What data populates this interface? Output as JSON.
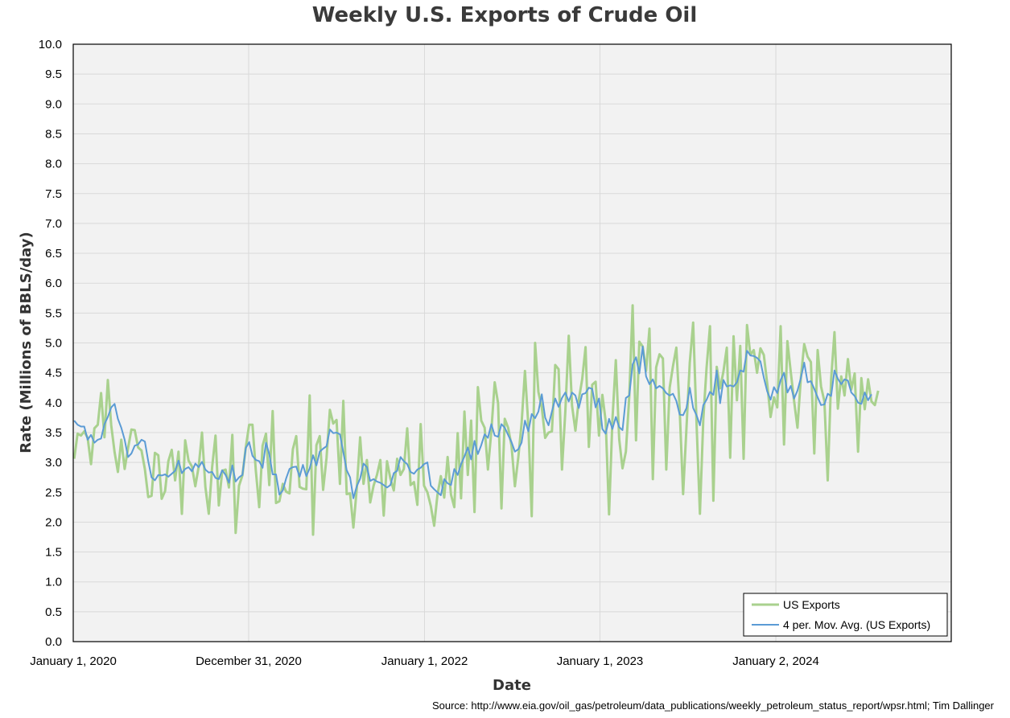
{
  "chart_data": {
    "type": "line",
    "title": "Weekly U.S. Exports of Crude Oil",
    "xlabel": "Date",
    "ylabel": "Rate (Millions of BBLS/day)",
    "source": "Source: http://www.eia.gov/oil_gas/petroleum/data_publications/weekly_petroleum_status_report/wpsr.html; Tim Dallinger",
    "ylim": [
      0,
      10
    ],
    "yticks": [
      "0.0",
      "0.5",
      "1.0",
      "1.5",
      "2.0",
      "2.5",
      "3.0",
      "3.5",
      "4.0",
      "4.5",
      "5.0",
      "5.5",
      "6.0",
      "6.5",
      "7.0",
      "7.5",
      "8.0",
      "8.5",
      "9.0",
      "9.5",
      "10.0"
    ],
    "xlim": [
      "2020-01-01",
      "2025-01-01"
    ],
    "xticks": [
      {
        "label": "January 1, 2020",
        "date": "2020-01-01"
      },
      {
        "label": "December 31, 2020",
        "date": "2020-12-31"
      },
      {
        "label": "January 1, 2022",
        "date": "2022-01-01"
      },
      {
        "label": "January 1, 2023",
        "date": "2023-01-01"
      },
      {
        "label": "January 2, 2024",
        "date": "2024-01-02"
      }
    ],
    "grid": true,
    "legend_position": "bottom-right",
    "colors": {
      "plot_bg": "#f2f2f2",
      "grid": "#d9d9d9",
      "series": "#a9d18e",
      "moving_avg": "#5b9bd5"
    },
    "x_start": "2020-01-03",
    "x_step_days": 7,
    "series": [
      {
        "name": "US Exports",
        "values": [
          3.06,
          3.48,
          3.45,
          3.52,
          3.41,
          2.97,
          3.57,
          3.63,
          4.16,
          3.42,
          4.38,
          3.62,
          3.17,
          2.84,
          3.38,
          2.89,
          3.24,
          3.55,
          3.54,
          3.25,
          3.2,
          2.89,
          2.42,
          2.44,
          3.16,
          3.12,
          2.39,
          2.52,
          3.02,
          3.21,
          2.7,
          3.18,
          2.14,
          3.37,
          3.03,
          2.93,
          2.6,
          2.93,
          3.5,
          2.59,
          2.14,
          2.92,
          3.45,
          2.28,
          2.86,
          2.88,
          2.58,
          3.46,
          1.82,
          2.61,
          2.78,
          3.25,
          3.63,
          3.63,
          2.86,
          2.25,
          3.28,
          3.48,
          2.62,
          3.86,
          2.32,
          2.35,
          2.64,
          2.51,
          2.48,
          3.22,
          3.44,
          2.59,
          2.56,
          2.55,
          4.12,
          1.79,
          3.29,
          3.44,
          2.54,
          3.07,
          3.88,
          3.65,
          3.71,
          2.64,
          4.03,
          2.47,
          2.48,
          1.91,
          2.56,
          3.42,
          2.64,
          3.04,
          2.33,
          2.61,
          2.79,
          3.04,
          2.11,
          3.02,
          2.73,
          2.53,
          3.06,
          2.79,
          2.89,
          3.57,
          2.62,
          2.67,
          2.29,
          3.64,
          2.61,
          2.5,
          2.27,
          1.94,
          2.46,
          2.77,
          2.41,
          3.09,
          2.46,
          2.25,
          3.49,
          2.4,
          3.85,
          2.79,
          3.7,
          2.17,
          4.26,
          3.7,
          3.58,
          2.88,
          3.52,
          4.34,
          3.99,
          2.23,
          3.73,
          3.58,
          3.28,
          2.6,
          3.08,
          3.65,
          4.53,
          3.62,
          2.1,
          5.0,
          4.18,
          3.92,
          3.41,
          3.5,
          3.52,
          4.63,
          4.56,
          2.88,
          3.86,
          5.12,
          3.95,
          3.53,
          4.05,
          4.39,
          4.93,
          3.26,
          4.3,
          4.35,
          3.45,
          4.13,
          3.69,
          2.13,
          3.72,
          4.71,
          3.39,
          2.9,
          3.18,
          4.1,
          5.63,
          3.37,
          5.02,
          4.94,
          4.53,
          5.24,
          2.72,
          4.59,
          4.81,
          4.74,
          2.88,
          4.25,
          4.61,
          4.92,
          3.87,
          2.47,
          3.58,
          4.67,
          5.34,
          3.66,
          2.14,
          3.72,
          4.59,
          5.28,
          2.36,
          4.6,
          4.24,
          4.52,
          4.92,
          3.08,
          5.11,
          4.04,
          4.95,
          3.06,
          5.3,
          4.8,
          4.88,
          4.5,
          4.91,
          4.8,
          4.32,
          3.76,
          4.09,
          3.92,
          5.28,
          3.3,
          5.03,
          4.51,
          4.03,
          3.58,
          4.41,
          4.98,
          4.77,
          4.68,
          3.15,
          4.88,
          4.27,
          4.02,
          2.7,
          4.38,
          5.18,
          3.9,
          4.44,
          4.12,
          4.73,
          4.22,
          4.49,
          3.18,
          4.41,
          3.89,
          4.39,
          4.02,
          3.96,
          4.2
        ]
      },
      {
        "name": "4 per. Mov. Avg. (US Exports)",
        "values": [
          3.7,
          3.63,
          3.6,
          3.6,
          3.38,
          3.46,
          3.33,
          3.38,
          3.4,
          3.64,
          3.76,
          3.92,
          3.98,
          3.73,
          3.58,
          3.38,
          3.09,
          3.15,
          3.28,
          3.3,
          3.38,
          3.35,
          3.02,
          2.75,
          2.7,
          2.79,
          2.78,
          2.8,
          2.76,
          2.81,
          2.86,
          3.03,
          2.82,
          2.89,
          2.92,
          2.85,
          2.98,
          2.92,
          3.01,
          2.88,
          2.83,
          2.84,
          2.74,
          2.72,
          2.87,
          2.79,
          2.66,
          2.95,
          2.68,
          2.75,
          2.79,
          3.24,
          3.34,
          3.11,
          3.04,
          3.02,
          2.91,
          3.33,
          3.14,
          2.8,
          2.8,
          2.46,
          2.53,
          2.73,
          2.89,
          2.92,
          2.93,
          2.76,
          2.96,
          2.77,
          2.9,
          3.12,
          2.95,
          3.18,
          3.23,
          3.27,
          3.55,
          3.49,
          3.5,
          3.47,
          3.17,
          2.87,
          2.75,
          2.4,
          2.6,
          2.73,
          2.98,
          2.92,
          2.69,
          2.72,
          2.68,
          2.66,
          2.62,
          2.58,
          2.62,
          2.82,
          2.86,
          3.09,
          3.02,
          2.97,
          2.84,
          2.81,
          2.88,
          2.91,
          2.97,
          3.0,
          2.61,
          2.55,
          2.5,
          2.45,
          2.72,
          2.65,
          2.62,
          2.89,
          2.79,
          2.97,
          3.1,
          3.25,
          3.05,
          3.36,
          3.14,
          3.29,
          3.47,
          3.41,
          3.64,
          3.45,
          3.43,
          3.64,
          3.58,
          3.46,
          3.34,
          3.18,
          3.22,
          3.33,
          3.7,
          3.52,
          3.81,
          3.74,
          3.85,
          4.14,
          3.75,
          3.62,
          3.85,
          4.07,
          3.93,
          4.08,
          4.17,
          4.02,
          4.17,
          4.12,
          3.91,
          4.14,
          4.16,
          4.25,
          4.23,
          3.92,
          4.07,
          3.56,
          3.48,
          3.73,
          3.56,
          3.76,
          3.59,
          3.54,
          4.08,
          4.12,
          4.64,
          4.76,
          4.49,
          4.94,
          4.44,
          4.31,
          4.39,
          4.24,
          4.28,
          4.24,
          4.16,
          4.12,
          4.15,
          4.03,
          3.8,
          3.79,
          3.91,
          4.25,
          3.91,
          3.79,
          3.62,
          3.96,
          4.05,
          4.18,
          4.13,
          4.54,
          3.99,
          4.38,
          4.27,
          4.29,
          4.27,
          4.34,
          4.54,
          4.52,
          4.87,
          4.79,
          4.78,
          4.75,
          4.69,
          4.42,
          4.19,
          4.05,
          4.26,
          4.16,
          4.38,
          4.5,
          4.17,
          4.28,
          4.07,
          4.2,
          4.41,
          4.67,
          4.34,
          4.36,
          4.23,
          4.09,
          3.96,
          3.97,
          4.15,
          4.11,
          4.54,
          4.4,
          4.31,
          4.39,
          4.37,
          4.17,
          4.11,
          4.0,
          3.98,
          4.17,
          4.04,
          4.14
        ]
      }
    ]
  }
}
